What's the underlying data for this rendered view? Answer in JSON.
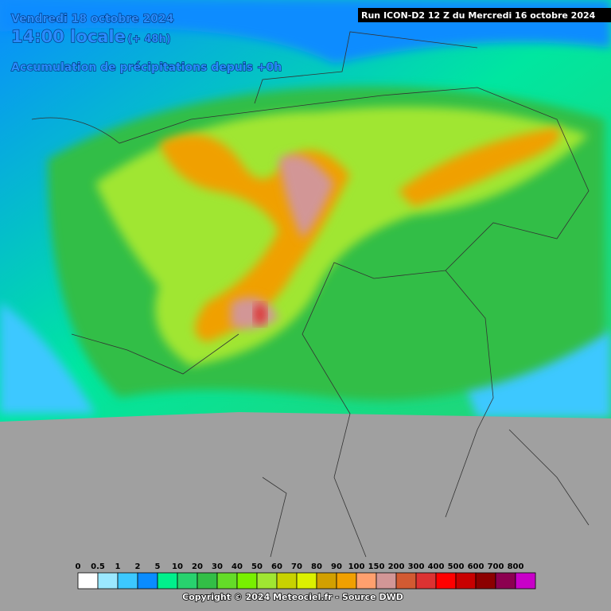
{
  "header": {
    "date": "Vendredi 18 octobre 2024",
    "time": "14:00 locale",
    "offset": "(+ 48h)",
    "subtitle": "Accumulation de précipitations depuis +0h",
    "run": "Run ICON-D2 12 Z du Mercredi 16 octobre 2024"
  },
  "legend": {
    "values": [
      0,
      0.5,
      1,
      2,
      5,
      10,
      20,
      30,
      40,
      50,
      60,
      70,
      80,
      90,
      100,
      150,
      200,
      300,
      400,
      500,
      600,
      700,
      800
    ],
    "colors": [
      "#ffffff",
      "#9be8ff",
      "#3cc8ff",
      "#0a8cff",
      "#00f08c",
      "#28d26e",
      "#32be46",
      "#64dc28",
      "#78f000",
      "#a0e632",
      "#c8d200",
      "#dcf000",
      "#d2a000",
      "#f0a000",
      "#ffa06e",
      "#d29696",
      "#d25a32",
      "#dc3232",
      "#ff0000",
      "#c80000",
      "#8c0000",
      "#8c0050",
      "#c800c8"
    ]
  },
  "footer": {
    "copyright": "Copyright © 2024 Meteociel.fr - Source DWD"
  }
}
